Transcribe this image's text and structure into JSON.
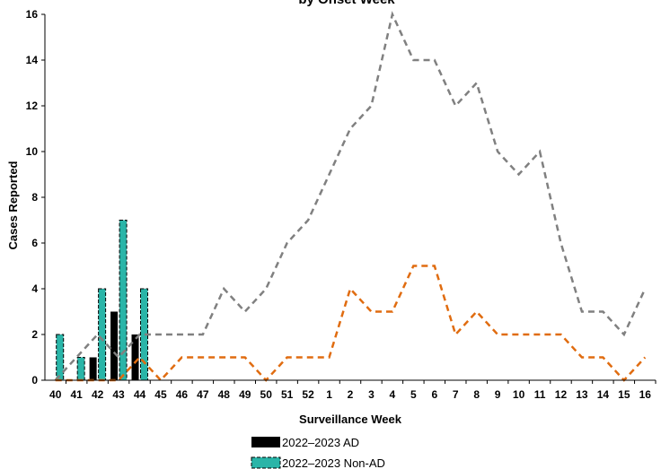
{
  "chart_data": {
    "type": "bar",
    "title": "by Onset Week",
    "xlabel": "Surveillance Week",
    "ylabel": "Cases Reported",
    "ylim": [
      0,
      16
    ],
    "yticks": [
      0,
      2,
      4,
      6,
      8,
      10,
      12,
      14,
      16
    ],
    "grid": false,
    "legend_position": "bottom",
    "categories": [
      "40",
      "41",
      "42",
      "43",
      "44",
      "45",
      "46",
      "47",
      "48",
      "49",
      "50",
      "51",
      "52",
      "1",
      "2",
      "3",
      "4",
      "5",
      "6",
      "7",
      "8",
      "9",
      "10",
      "11",
      "12",
      "13",
      "14",
      "15",
      "16"
    ],
    "series": [
      {
        "name": "2022–2023 AD",
        "kind": "bar",
        "color": "#000000",
        "values": [
          0,
          0,
          1,
          3,
          2,
          null,
          null,
          null,
          null,
          null,
          null,
          null,
          null,
          null,
          null,
          null,
          null,
          null,
          null,
          null,
          null,
          null,
          null,
          null,
          null,
          null,
          null,
          null,
          null
        ]
      },
      {
        "name": "2022–2023 Non-AD",
        "kind": "bar",
        "color": "#2ab5a8",
        "values": [
          2,
          1,
          4,
          7,
          4,
          null,
          null,
          null,
          null,
          null,
          null,
          null,
          null,
          null,
          null,
          null,
          null,
          null,
          null,
          null,
          null,
          null,
          null,
          null,
          null,
          null,
          null,
          null,
          null
        ]
      },
      {
        "kind": "line",
        "color": "#808080",
        "values": [
          0,
          1,
          2,
          1,
          2,
          2,
          2,
          2,
          4,
          3,
          4,
          6,
          7,
          9,
          11,
          12,
          16,
          14,
          14,
          12,
          13,
          10,
          9,
          10,
          6,
          3,
          3,
          2,
          4
        ]
      },
      {
        "kind": "line",
        "color": "#e06c10",
        "values": [
          0,
          0,
          0,
          0,
          1,
          0,
          1,
          1,
          1,
          1,
          0,
          1,
          1,
          1,
          4,
          3,
          3,
          5,
          5,
          2,
          3,
          2,
          2,
          2,
          2,
          1,
          1,
          0,
          1
        ]
      }
    ]
  }
}
